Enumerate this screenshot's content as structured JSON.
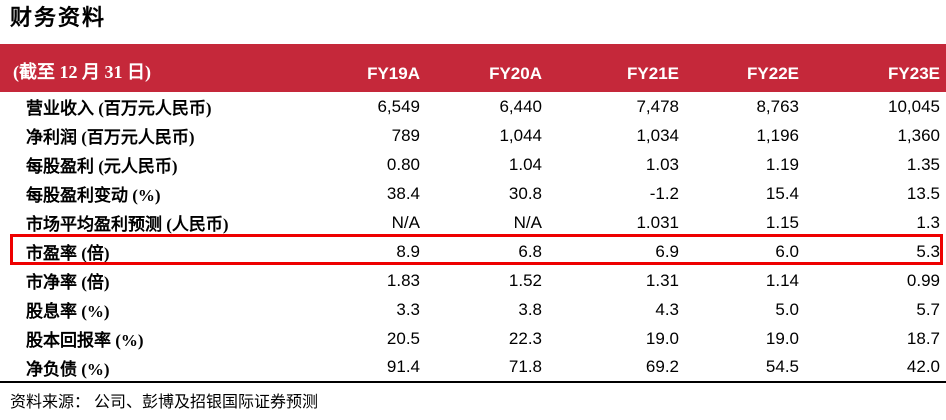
{
  "title": "财务资料",
  "table": {
    "header": {
      "label": "(截至 12 月 31 日)",
      "columns": [
        "FY19A",
        "FY20A",
        "FY21E",
        "FY22E",
        "FY23E"
      ]
    },
    "rows": [
      {
        "label": "营业收入 (百万元人民币)",
        "values": [
          "6,549",
          "6,440",
          "7,478",
          "8,763",
          "10,045"
        ],
        "highlighted": false
      },
      {
        "label": "净利润 (百万元人民币)",
        "values": [
          "789",
          "1,044",
          "1,034",
          "1,196",
          "1,360"
        ],
        "highlighted": false
      },
      {
        "label": "每股盈利 (元人民币)",
        "values": [
          "0.80",
          "1.04",
          "1.03",
          "1.19",
          "1.35"
        ],
        "highlighted": false
      },
      {
        "label": "每股盈利变动 (%)",
        "values": [
          "38.4",
          "30.8",
          "-1.2",
          "15.4",
          "13.5"
        ],
        "highlighted": false
      },
      {
        "label": "市场平均盈利预测 (人民币)",
        "values": [
          "N/A",
          "N/A",
          "1.031",
          "1.15",
          "1.3"
        ],
        "highlighted": false
      },
      {
        "label": "市盈率 (倍)",
        "values": [
          "8.9",
          "6.8",
          "6.9",
          "6.0",
          "5.3"
        ],
        "highlighted": true
      },
      {
        "label": "市净率 (倍)",
        "values": [
          "1.83",
          "1.52",
          "1.31",
          "1.14",
          "0.99"
        ],
        "highlighted": false
      },
      {
        "label": "股息率 (%)",
        "values": [
          "3.3",
          "3.8",
          "4.3",
          "5.0",
          "5.7"
        ],
        "highlighted": false
      },
      {
        "label": "股本回报率 (%)",
        "values": [
          "20.5",
          "22.3",
          "19.0",
          "19.0",
          "18.7"
        ],
        "highlighted": false
      },
      {
        "label": "净负债 (%)",
        "values": [
          "91.4",
          "71.8",
          "69.2",
          "54.5",
          "42.0"
        ],
        "highlighted": false
      }
    ]
  },
  "footer": {
    "source": "资料来源： 公司、彭博及招银国际证券预测"
  },
  "colors": {
    "header_bg": "#C5283A",
    "header_text": "#FFFFFF",
    "highlight_border": "#EE0000",
    "rule": "#000000",
    "text": "#000000"
  }
}
